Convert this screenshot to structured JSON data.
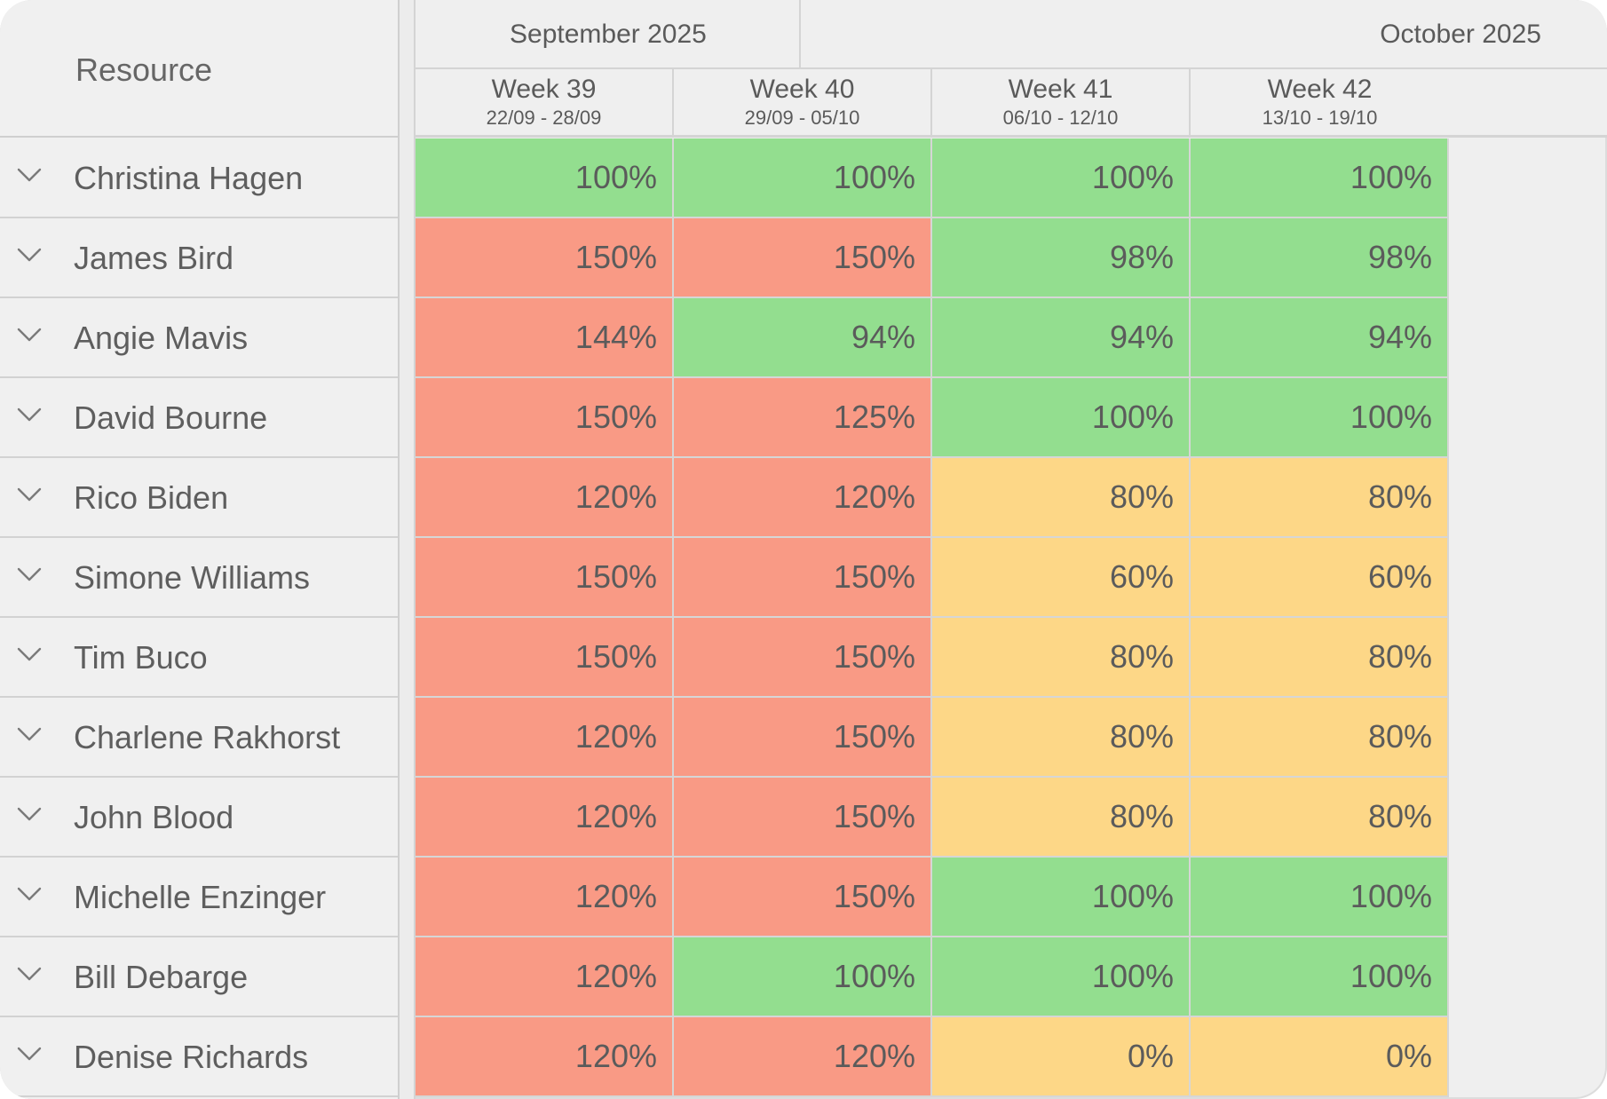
{
  "header": {
    "resource_label": "Resource",
    "months": [
      {
        "label": "September 2025"
      },
      {
        "label": "October 2025"
      }
    ],
    "weeks": [
      {
        "label": "Week 39",
        "range": "22/09 - 28/09"
      },
      {
        "label": "Week 40",
        "range": "29/09 - 05/10"
      },
      {
        "label": "Week 41",
        "range": "06/10 - 12/10"
      },
      {
        "label": "Week 42",
        "range": "13/10 - 19/10"
      }
    ]
  },
  "colors": {
    "over_allocated": "#f99a85",
    "fully_allocated": "#93de8f",
    "under_allocated": "#fdd787"
  },
  "rows": [
    {
      "name": "Christina Hagen",
      "values": [
        "100%",
        "100%",
        "100%",
        "100%"
      ],
      "status": [
        "ok",
        "ok",
        "ok",
        "ok"
      ]
    },
    {
      "name": "James Bird",
      "values": [
        "150%",
        "150%",
        "98%",
        "98%"
      ],
      "status": [
        "over",
        "over",
        "ok",
        "ok"
      ]
    },
    {
      "name": "Angie Mavis",
      "values": [
        "144%",
        "94%",
        "94%",
        "94%"
      ],
      "status": [
        "over",
        "ok",
        "ok",
        "ok"
      ]
    },
    {
      "name": "David Bourne",
      "values": [
        "150%",
        "125%",
        "100%",
        "100%"
      ],
      "status": [
        "over",
        "over",
        "ok",
        "ok"
      ]
    },
    {
      "name": "Rico Biden",
      "values": [
        "120%",
        "120%",
        "80%",
        "80%"
      ],
      "status": [
        "over",
        "over",
        "under",
        "under"
      ]
    },
    {
      "name": "Simone Williams",
      "values": [
        "150%",
        "150%",
        "60%",
        "60%"
      ],
      "status": [
        "over",
        "over",
        "under",
        "under"
      ]
    },
    {
      "name": "Tim Buco",
      "values": [
        "150%",
        "150%",
        "80%",
        "80%"
      ],
      "status": [
        "over",
        "over",
        "under",
        "under"
      ]
    },
    {
      "name": "Charlene Rakhorst",
      "values": [
        "120%",
        "150%",
        "80%",
        "80%"
      ],
      "status": [
        "over",
        "over",
        "under",
        "under"
      ]
    },
    {
      "name": "John Blood",
      "values": [
        "120%",
        "150%",
        "80%",
        "80%"
      ],
      "status": [
        "over",
        "over",
        "under",
        "under"
      ]
    },
    {
      "name": "Michelle Enzinger",
      "values": [
        "120%",
        "150%",
        "100%",
        "100%"
      ],
      "status": [
        "over",
        "over",
        "ok",
        "ok"
      ]
    },
    {
      "name": "Bill Debarge",
      "values": [
        "120%",
        "100%",
        "100%",
        "100%"
      ],
      "status": [
        "over",
        "ok",
        "ok",
        "ok"
      ]
    },
    {
      "name": "Denise Richards",
      "values": [
        "120%",
        "120%",
        "0%",
        "0%"
      ],
      "status": [
        "over",
        "over",
        "under",
        "under"
      ]
    }
  ]
}
